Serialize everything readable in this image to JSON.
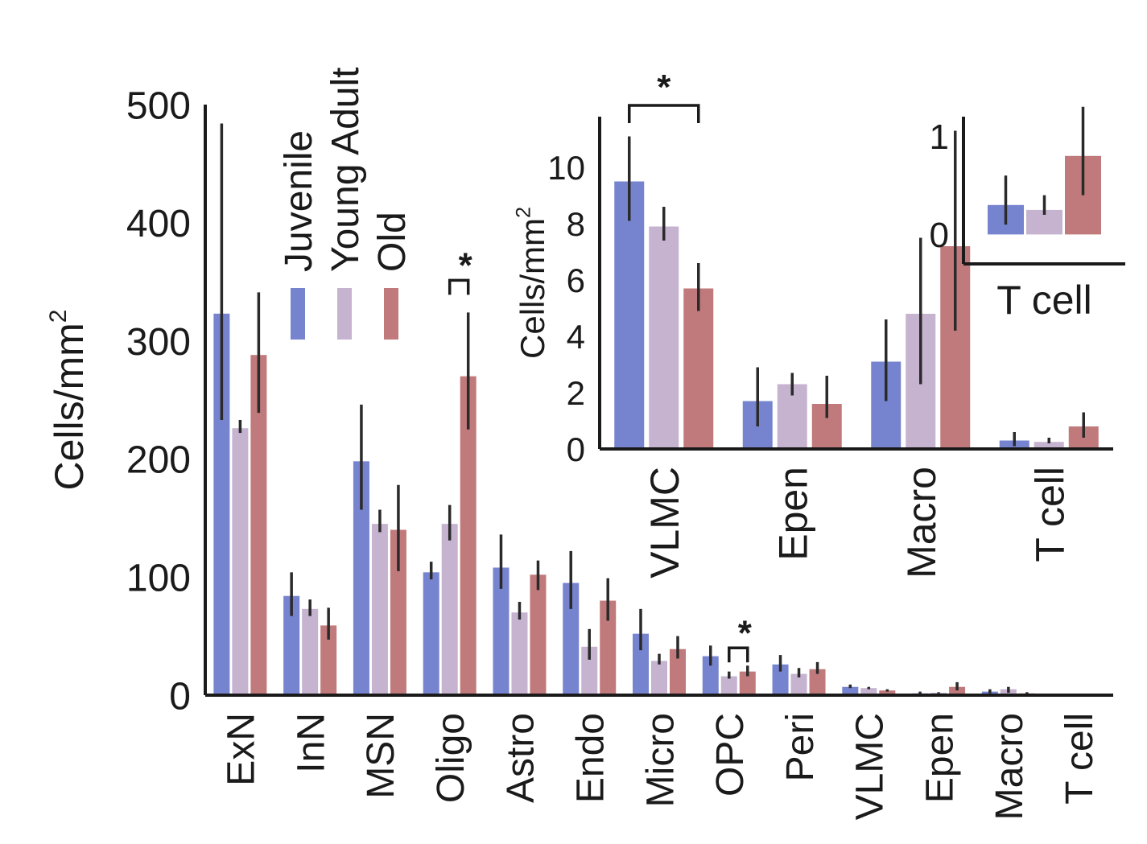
{
  "legend": {
    "groups": [
      "Juvenile",
      "Young Adult",
      "Old"
    ],
    "colors": [
      "#7684d0",
      "#c6b3d0",
      "#c17a7b"
    ]
  },
  "chart_data": [
    {
      "id": "main",
      "type": "bar",
      "ylabel": "Cells/mm",
      "ylabel_superscript": "2",
      "ylim": [
        0,
        500
      ],
      "yticks": [
        "0",
        "100",
        "200",
        "300",
        "400",
        "500"
      ],
      "categories": [
        "ExN",
        "InN",
        "MSN",
        "Oligo",
        "Astro",
        "Endo",
        "Micro",
        "OPC",
        "Peri",
        "VLMC",
        "Epen",
        "Macro",
        "T cell"
      ],
      "series": [
        {
          "name": "Juvenile",
          "values": [
            323,
            84,
            198,
            104,
            108,
            95,
            52,
            33,
            26,
            7,
            1.5,
            3,
            0.3
          ],
          "err_low": [
            233,
            67,
            157,
            98,
            90,
            73,
            38,
            25,
            20,
            6,
            0.5,
            1.5,
            0.1
          ],
          "err_high": [
            484,
            104,
            246,
            113,
            136,
            122,
            73,
            42,
            34,
            9,
            3,
            5,
            0.5
          ]
        },
        {
          "name": "Young Adult",
          "values": [
            226,
            73,
            145,
            145,
            70,
            41,
            29,
            16,
            18,
            6,
            2,
            5,
            0.25
          ],
          "err_low": [
            222,
            67,
            138,
            131,
            64,
            30,
            26,
            14,
            15,
            5,
            1.5,
            2,
            0.2
          ],
          "err_high": [
            233,
            81,
            157,
            161,
            79,
            56,
            35,
            20,
            23,
            7,
            2.5,
            7,
            0.3
          ]
        },
        {
          "name": "Old",
          "values": [
            288,
            59,
            140,
            270,
            102,
            80,
            39,
            20,
            22,
            4,
            7,
            1.5,
            0.7
          ],
          "err_low": [
            239,
            47,
            105,
            225,
            89,
            63,
            31,
            16,
            18,
            3,
            4,
            1,
            0.4
          ],
          "err_high": [
            341,
            74,
            178,
            324,
            114,
            99,
            50,
            25,
            28,
            5,
            11,
            2.5,
            1
          ]
        }
      ],
      "annotations": [
        {
          "label": "*",
          "between": [
            "Oligo",
            "Oligo"
          ],
          "groups": [
            "Young Adult",
            "Old"
          ]
        },
        {
          "label": "*",
          "between": [
            "OPC",
            "OPC"
          ],
          "groups": [
            "Young Adult",
            "Old"
          ]
        }
      ]
    },
    {
      "id": "inset",
      "type": "bar",
      "ylabel": "Cells/mm",
      "ylabel_superscript": "2",
      "ylim": [
        0,
        11.8
      ],
      "yticks": [
        "0",
        "2",
        "4",
        "6",
        "8",
        "10"
      ],
      "categories": [
        "VLMC",
        "Epen",
        "Macro",
        "T cell"
      ],
      "series": [
        {
          "name": "Juvenile",
          "values": [
            9.5,
            1.7,
            3.1,
            0.3
          ],
          "err_low": [
            8.1,
            0.8,
            1.7,
            0.1
          ],
          "err_high": [
            11.1,
            2.9,
            4.6,
            0.6
          ]
        },
        {
          "name": "Young Adult",
          "values": [
            7.9,
            2.3,
            4.8,
            0.25
          ],
          "err_low": [
            7.4,
            1.9,
            2.3,
            0.2
          ],
          "err_high": [
            8.6,
            2.7,
            7.5,
            0.4
          ]
        },
        {
          "name": "Old",
          "values": [
            5.7,
            1.6,
            7.2,
            0.8
          ],
          "err_low": [
            4.9,
            1.1,
            4.2,
            0.4
          ],
          "err_high": [
            6.6,
            2.6,
            11.3,
            1.3
          ]
        }
      ],
      "annotations": [
        {
          "label": "*",
          "between": [
            "VLMC",
            "VLMC"
          ],
          "groups": [
            "Juvenile",
            "Old"
          ]
        }
      ]
    },
    {
      "id": "inset2",
      "type": "bar",
      "ylim": [
        -0.3,
        1.2
      ],
      "yticks": [
        "0",
        "1"
      ],
      "categories": [
        "T cell"
      ],
      "series": [
        {
          "name": "Juvenile",
          "values": [
            0.3
          ],
          "err_low": [
            0.1
          ],
          "err_high": [
            0.6
          ]
        },
        {
          "name": "Young Adult",
          "values": [
            0.25
          ],
          "err_low": [
            0.2
          ],
          "err_high": [
            0.4
          ]
        },
        {
          "name": "Old",
          "values": [
            0.8
          ],
          "err_low": [
            0.4
          ],
          "err_high": [
            1.3
          ]
        }
      ]
    }
  ]
}
